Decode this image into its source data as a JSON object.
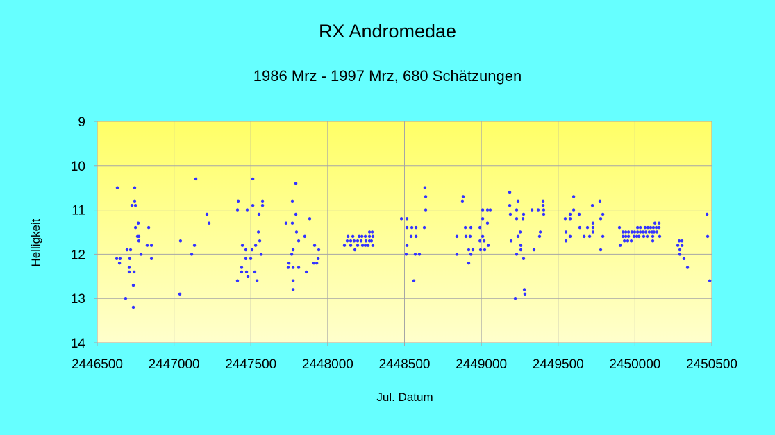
{
  "chart_data": {
    "type": "scatter",
    "title": "RX Andromedae",
    "subtitle": "1986 Mrz - 1997 Mrz, 680 Schätzungen",
    "xlabel": "Jul. Datum",
    "ylabel": "Helligkeit",
    "xlim": [
      2446500,
      2450500
    ],
    "ylim": [
      9,
      14
    ],
    "y_reversed": true,
    "xticks": [
      2446500,
      2447000,
      2447500,
      2448000,
      2448500,
      2449000,
      2449500,
      2450000,
      2450500
    ],
    "yticks": [
      9,
      10,
      11,
      12,
      13,
      14
    ],
    "grid": true,
    "legend": "none",
    "colors": {
      "background": "#66ffff",
      "plot_top": "#ffff66",
      "plot_bottom": "#ffffcc",
      "grid": "#a6a6a6",
      "points": "#3333ff"
    },
    "points": [
      [
        2446631,
        10.5
      ],
      [
        2446744,
        10.5
      ],
      [
        2446744,
        10.8
      ],
      [
        2446726,
        10.9
      ],
      [
        2446749,
        10.9
      ],
      [
        2446767,
        11.3
      ],
      [
        2446749,
        11.4
      ],
      [
        2446835,
        11.4
      ],
      [
        2446762,
        11.6
      ],
      [
        2446771,
        11.6
      ],
      [
        2446771,
        11.7
      ],
      [
        2446825,
        11.8
      ],
      [
        2446853,
        11.8
      ],
      [
        2446694,
        11.9
      ],
      [
        2446717,
        11.9
      ],
      [
        2446785,
        12.0
      ],
      [
        2446627,
        12.1
      ],
      [
        2446649,
        12.1
      ],
      [
        2446712,
        12.1
      ],
      [
        2446853,
        12.1
      ],
      [
        2446645,
        12.2
      ],
      [
        2446708,
        12.3
      ],
      [
        2446708,
        12.4
      ],
      [
        2446740,
        12.4
      ],
      [
        2446735,
        12.7
      ],
      [
        2446685,
        13.0
      ],
      [
        2446735,
        13.2
      ],
      [
        2447142,
        10.3
      ],
      [
        2447214,
        11.1
      ],
      [
        2447228,
        11.3
      ],
      [
        2447042,
        11.7
      ],
      [
        2447133,
        11.8
      ],
      [
        2447115,
        12.0
      ],
      [
        2447038,
        12.9
      ],
      [
        2447513,
        10.3
      ],
      [
        2447418,
        10.8
      ],
      [
        2447576,
        10.8
      ],
      [
        2447513,
        10.9
      ],
      [
        2447576,
        10.9
      ],
      [
        2447413,
        11.0
      ],
      [
        2447476,
        11.0
      ],
      [
        2447553,
        11.1
      ],
      [
        2447549,
        11.5
      ],
      [
        2447558,
        11.7
      ],
      [
        2447445,
        11.8
      ],
      [
        2447531,
        11.8
      ],
      [
        2447467,
        11.9
      ],
      [
        2447508,
        11.9
      ],
      [
        2447567,
        12.0
      ],
      [
        2447467,
        12.1
      ],
      [
        2447499,
        12.1
      ],
      [
        2447440,
        12.3
      ],
      [
        2447440,
        12.4
      ],
      [
        2447472,
        12.4
      ],
      [
        2447526,
        12.4
      ],
      [
        2447481,
        12.5
      ],
      [
        2447413,
        12.6
      ],
      [
        2447540,
        12.6
      ],
      [
        2447793,
        10.4
      ],
      [
        2447770,
        10.8
      ],
      [
        2447793,
        11.1
      ],
      [
        2447883,
        11.2
      ],
      [
        2447729,
        11.3
      ],
      [
        2447770,
        11.3
      ],
      [
        2447797,
        11.5
      ],
      [
        2447851,
        11.6
      ],
      [
        2447811,
        11.7
      ],
      [
        2447915,
        11.8
      ],
      [
        2447775,
        11.9
      ],
      [
        2447942,
        11.9
      ],
      [
        2447766,
        12.0
      ],
      [
        2447938,
        12.1
      ],
      [
        2447748,
        12.2
      ],
      [
        2447910,
        12.2
      ],
      [
        2447929,
        12.2
      ],
      [
        2447743,
        12.3
      ],
      [
        2447775,
        12.3
      ],
      [
        2447811,
        12.3
      ],
      [
        2447861,
        12.4
      ],
      [
        2447775,
        12.6
      ],
      [
        2447775,
        12.8
      ],
      [
        2448272,
        11.5
      ],
      [
        2448290,
        11.5
      ],
      [
        2448132,
        11.6
      ],
      [
        2448164,
        11.6
      ],
      [
        2448205,
        11.6
      ],
      [
        2448223,
        11.6
      ],
      [
        2448245,
        11.6
      ],
      [
        2448272,
        11.6
      ],
      [
        2448294,
        11.6
      ],
      [
        2448127,
        11.7
      ],
      [
        2448150,
        11.7
      ],
      [
        2448172,
        11.7
      ],
      [
        2448195,
        11.7
      ],
      [
        2448218,
        11.7
      ],
      [
        2448249,
        11.7
      ],
      [
        2448272,
        11.7
      ],
      [
        2448285,
        11.7
      ],
      [
        2448109,
        11.8
      ],
      [
        2448150,
        11.8
      ],
      [
        2448195,
        11.8
      ],
      [
        2448227,
        11.8
      ],
      [
        2448245,
        11.8
      ],
      [
        2448263,
        11.8
      ],
      [
        2448294,
        11.8
      ],
      [
        2448177,
        11.9
      ],
      [
        2448633,
        10.5
      ],
      [
        2448638,
        10.7
      ],
      [
        2448638,
        11.0
      ],
      [
        2448480,
        11.2
      ],
      [
        2448516,
        11.2
      ],
      [
        2448516,
        11.4
      ],
      [
        2448548,
        11.4
      ],
      [
        2448575,
        11.4
      ],
      [
        2448629,
        11.4
      ],
      [
        2448543,
        11.6
      ],
      [
        2448575,
        11.6
      ],
      [
        2448516,
        11.8
      ],
      [
        2448511,
        12.0
      ],
      [
        2448570,
        12.0
      ],
      [
        2448597,
        12.0
      ],
      [
        2448561,
        12.6
      ],
      [
        2448882,
        10.7
      ],
      [
        2448877,
        10.8
      ],
      [
        2449009,
        11.0
      ],
      [
        2449040,
        11.0
      ],
      [
        2449058,
        11.0
      ],
      [
        2449009,
        11.2
      ],
      [
        2449040,
        11.3
      ],
      [
        2448896,
        11.4
      ],
      [
        2448932,
        11.4
      ],
      [
        2448991,
        11.4
      ],
      [
        2448841,
        11.6
      ],
      [
        2448900,
        11.6
      ],
      [
        2448927,
        11.6
      ],
      [
        2449009,
        11.6
      ],
      [
        2448991,
        11.7
      ],
      [
        2449018,
        11.7
      ],
      [
        2449045,
        11.8
      ],
      [
        2448918,
        11.9
      ],
      [
        2448945,
        11.9
      ],
      [
        2448995,
        11.9
      ],
      [
        2449022,
        11.9
      ],
      [
        2448841,
        12.0
      ],
      [
        2448932,
        12.0
      ],
      [
        2448918,
        12.2
      ],
      [
        2449185,
        10.6
      ],
      [
        2449239,
        10.8
      ],
      [
        2449185,
        10.9
      ],
      [
        2449230,
        11.0
      ],
      [
        2449189,
        11.1
      ],
      [
        2449275,
        11.1
      ],
      [
        2449230,
        11.2
      ],
      [
        2449271,
        11.2
      ],
      [
        2449253,
        11.5
      ],
      [
        2449239,
        11.6
      ],
      [
        2449194,
        11.7
      ],
      [
        2449257,
        11.8
      ],
      [
        2449257,
        11.9
      ],
      [
        2449230,
        12.0
      ],
      [
        2449275,
        12.1
      ],
      [
        2449280,
        12.8
      ],
      [
        2449284,
        12.9
      ],
      [
        2449221,
        13.0
      ],
      [
        2449402,
        10.8
      ],
      [
        2449402,
        10.9
      ],
      [
        2449330,
        11.0
      ],
      [
        2449370,
        11.0
      ],
      [
        2449406,
        11.0
      ],
      [
        2449406,
        11.1
      ],
      [
        2449384,
        11.5
      ],
      [
        2449379,
        11.6
      ],
      [
        2449343,
        11.9
      ],
      [
        2449601,
        10.7
      ],
      [
        2449772,
        10.8
      ],
      [
        2449723,
        10.9
      ],
      [
        2449601,
        11.0
      ],
      [
        2449578,
        11.1
      ],
      [
        2449637,
        11.1
      ],
      [
        2449791,
        11.1
      ],
      [
        2449546,
        11.2
      ],
      [
        2449578,
        11.2
      ],
      [
        2449777,
        11.2
      ],
      [
        2449727,
        11.3
      ],
      [
        2449641,
        11.4
      ],
      [
        2449691,
        11.4
      ],
      [
        2449727,
        11.4
      ],
      [
        2449551,
        11.5
      ],
      [
        2449727,
        11.5
      ],
      [
        2449578,
        11.6
      ],
      [
        2449669,
        11.6
      ],
      [
        2449705,
        11.6
      ],
      [
        2449791,
        11.6
      ],
      [
        2449551,
        11.7
      ],
      [
        2449777,
        11.9
      ],
      [
        2449899,
        11.4
      ],
      [
        2449904,
        11.8
      ],
      [
        2450130,
        11.3
      ],
      [
        2450157,
        11.3
      ],
      [
        2450017,
        11.4
      ],
      [
        2450035,
        11.4
      ],
      [
        2450066,
        11.4
      ],
      [
        2450084,
        11.4
      ],
      [
        2450102,
        11.4
      ],
      [
        2450120,
        11.4
      ],
      [
        2450139,
        11.4
      ],
      [
        2450157,
        11.4
      ],
      [
        2449922,
        11.5
      ],
      [
        2449940,
        11.5
      ],
      [
        2449958,
        11.5
      ],
      [
        2449980,
        11.5
      ],
      [
        2449998,
        11.5
      ],
      [
        2450017,
        11.5
      ],
      [
        2450035,
        11.5
      ],
      [
        2450053,
        11.5
      ],
      [
        2450071,
        11.5
      ],
      [
        2450093,
        11.5
      ],
      [
        2450111,
        11.5
      ],
      [
        2450124,
        11.5
      ],
      [
        2450143,
        11.5
      ],
      [
        2449922,
        11.6
      ],
      [
        2449940,
        11.6
      ],
      [
        2449958,
        11.6
      ],
      [
        2449994,
        11.6
      ],
      [
        2450012,
        11.6
      ],
      [
        2450026,
        11.6
      ],
      [
        2450057,
        11.6
      ],
      [
        2450080,
        11.6
      ],
      [
        2450116,
        11.6
      ],
      [
        2450161,
        11.6
      ],
      [
        2449931,
        11.7
      ],
      [
        2449953,
        11.7
      ],
      [
        2449976,
        11.7
      ],
      [
        2450116,
        11.7
      ],
      [
        2450288,
        11.7
      ],
      [
        2450306,
        11.7
      ],
      [
        2450279,
        11.8
      ],
      [
        2450306,
        11.8
      ],
      [
        2450292,
        11.9
      ],
      [
        2450292,
        12.0
      ],
      [
        2450319,
        12.1
      ],
      [
        2450342,
        12.3
      ],
      [
        2450469,
        11.1
      ],
      [
        2450473,
        11.6
      ],
      [
        2450487,
        12.6
      ]
    ]
  }
}
